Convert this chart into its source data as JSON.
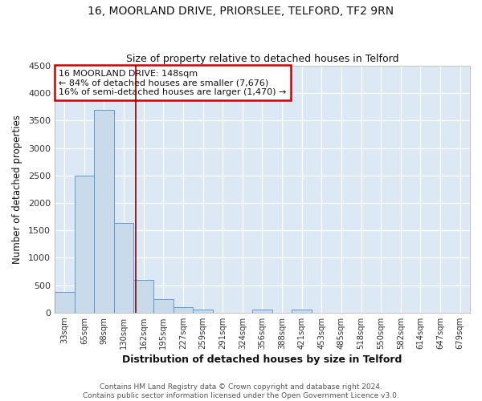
{
  "title_line1": "16, MOORLAND DRIVE, PRIORSLEE, TELFORD, TF2 9RN",
  "title_line2": "Size of property relative to detached houses in Telford",
  "xlabel": "Distribution of detached houses by size in Telford",
  "ylabel": "Number of detached properties",
  "categories": [
    "33sqm",
    "65sqm",
    "98sqm",
    "130sqm",
    "162sqm",
    "195sqm",
    "227sqm",
    "259sqm",
    "291sqm",
    "324sqm",
    "356sqm",
    "388sqm",
    "421sqm",
    "453sqm",
    "485sqm",
    "518sqm",
    "550sqm",
    "582sqm",
    "614sqm",
    "647sqm",
    "679sqm"
  ],
  "values": [
    380,
    2500,
    3700,
    1630,
    600,
    240,
    105,
    60,
    0,
    0,
    55,
    0,
    55,
    0,
    0,
    0,
    0,
    0,
    0,
    0,
    0
  ],
  "bar_color": "#c9daea",
  "bar_edge_color": "#5b9bd5",
  "plot_bg_color": "#dce9f5",
  "fig_bg_color": "#ffffff",
  "grid_color": "#ffffff",
  "vline_color": "#8b0000",
  "vline_x_index": 3.62,
  "annotation_line1": "16 MOORLAND DRIVE: 148sqm",
  "annotation_line2": "← 84% of detached houses are smaller (7,676)",
  "annotation_line3": "16% of semi-detached houses are larger (1,470) →",
  "annotation_box_facecolor": "#ffffff",
  "annotation_box_edgecolor": "#cc0000",
  "ylim": [
    0,
    4500
  ],
  "yticks": [
    0,
    500,
    1000,
    1500,
    2000,
    2500,
    3000,
    3500,
    4000,
    4500
  ],
  "footnote_line1": "Contains HM Land Registry data © Crown copyright and database right 2024.",
  "footnote_line2": "Contains public sector information licensed under the Open Government Licence v3.0."
}
